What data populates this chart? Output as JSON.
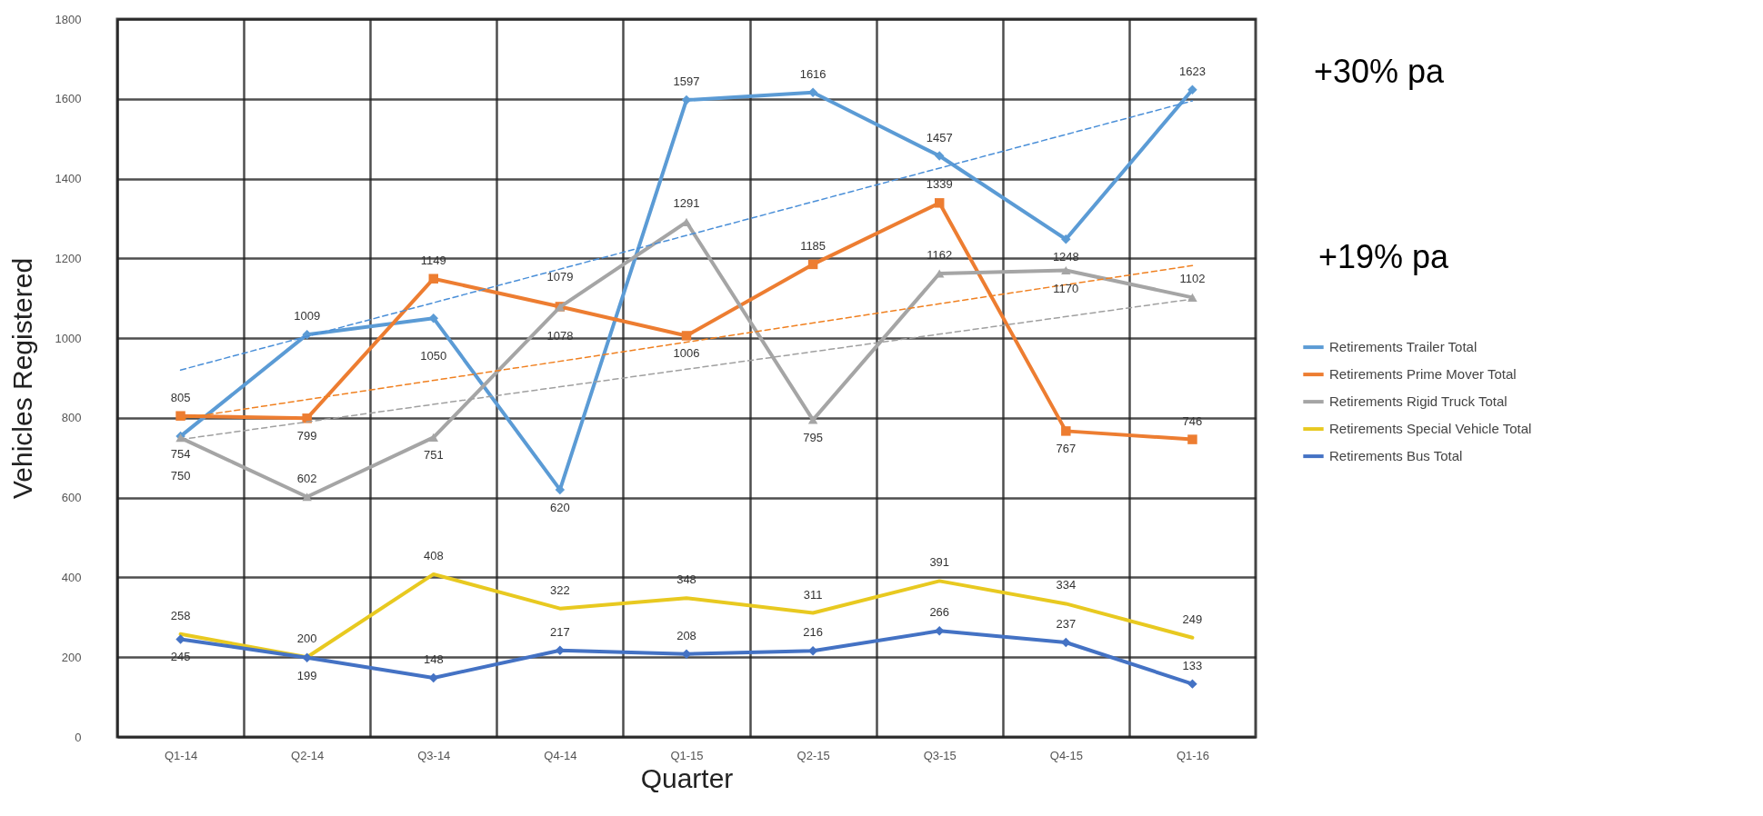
{
  "chart_data": {
    "type": "line",
    "xlabel": "Quarter",
    "ylabel": "Vehicles Registered",
    "categories": [
      "Q1-14",
      "Q2-14",
      "Q3-14",
      "Q4-14",
      "Q1-15",
      "Q2-15",
      "Q3-15",
      "Q4-15",
      "Q1-16"
    ],
    "series": [
      {
        "name": "Retirements Trailer Total",
        "color": "#5b9bd5",
        "marker": "diamond",
        "values": [
          754,
          1009,
          1050,
          620,
          1597,
          1616,
          1457,
          1248,
          1623
        ],
        "value_labels": [
          "754",
          "1009",
          "1050",
          "620",
          "1597",
          "1616",
          "1457",
          "1248",
          "1623"
        ]
      },
      {
        "name": "Retirements Prime Mover Total",
        "color": "#ed7d31",
        "marker": "square",
        "values": [
          805,
          799,
          1149,
          1079,
          1006,
          1185,
          1339,
          767,
          746
        ],
        "value_labels": [
          "805",
          "799",
          "1149",
          "1079",
          "1006",
          "1185",
          "1339",
          "767",
          "746"
        ]
      },
      {
        "name": "Retirements Rigid Truck Total",
        "color": "#a5a5a5",
        "marker": "triangle",
        "values": [
          750,
          602,
          751,
          1078,
          1291,
          795,
          1162,
          1170,
          1102
        ],
        "value_labels": [
          "750",
          "602",
          "751",
          "1078",
          "1291",
          "795",
          "1162",
          "1170",
          "1102"
        ]
      },
      {
        "name": "Retirements Special Vehicle Total",
        "color": "#e8c920",
        "marker": "none",
        "values": [
          258,
          200,
          408,
          322,
          348,
          311,
          391,
          334,
          249
        ],
        "value_labels": [
          "258",
          "200",
          "408",
          "322",
          "348",
          "311",
          "391",
          "334",
          "249"
        ]
      },
      {
        "name": "Retirements Bus Total",
        "color": "#4472c4",
        "marker": "diamond",
        "values": [
          245,
          199,
          148,
          217,
          208,
          216,
          266,
          237,
          133
        ],
        "value_labels": [
          "245",
          "199",
          "148",
          "217",
          "208",
          "216",
          "266",
          "237",
          "133"
        ]
      },
      {
        "type": "line",
        "color": "#4a8fd8",
        "line_style": "dashed",
        "x": [
          "Q1-14",
          "Q1-16"
        ],
        "values": [
          920,
          1595
        ]
      },
      {
        "type": "line",
        "color": "#f08020",
        "line_style": "dashed",
        "x": [
          "Q1-14",
          "Q1-16"
        ],
        "values": [
          798,
          1182
        ]
      },
      {
        "type": "line",
        "color": "#a0a0a0",
        "line_style": "dashed",
        "x": [
          "Q1-14",
          "Q1-16"
        ],
        "values": [
          746,
          1098
        ]
      }
    ],
    "ylim": [
      0,
      1800
    ],
    "yticks": [
      0,
      200,
      400,
      600,
      800,
      1000,
      1200,
      1400,
      1600,
      1800
    ],
    "grid": true,
    "legend": "right",
    "annotations": [
      "+30% pa",
      "+19% pa"
    ]
  }
}
